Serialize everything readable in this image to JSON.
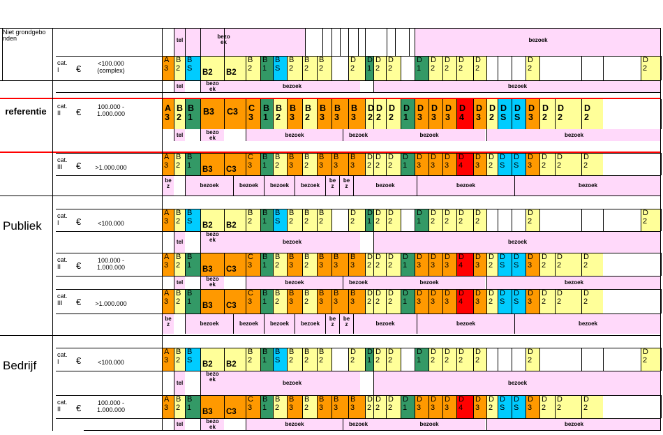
{
  "color_map": {
    "A": "#ff9900",
    "Bo": "#ff9900",
    "Bg": "#339966",
    "Bc": "#00ccff",
    "By": "#ffff99",
    "Dy": "#ffff99",
    "Dg": "#339966",
    "Dc": "#00ccff",
    "Do": "#ff9900",
    "R": "#ff0000",
    "Cy": "#ffff99",
    "Co": "#ff9900"
  },
  "sections": {
    "niet_grondgebonden": "Niet grondgebonden",
    "referentie": "referentie",
    "publiek": "Publiek",
    "bedrijf": "Bedrijf"
  },
  "rows": [
    {
      "id": "niet-cat1",
      "cat": "cat. I",
      "euro": "€",
      "range": [
        "<100.000",
        "(complex)"
      ],
      "type": 1
    },
    {
      "id": "ref-cat2",
      "cat": "cat. II",
      "euro": "€",
      "range": [
        "100.000 -",
        "1.000.000"
      ],
      "type": 2
    },
    {
      "id": "ref-cat3",
      "cat": "cat. III",
      "euro": "€",
      "range": [
        ">1.000.000"
      ],
      "type": 3
    },
    {
      "id": "pub-cat1",
      "cat": "cat. I",
      "euro": "€",
      "range": [
        "<100.000"
      ],
      "type": 1
    },
    {
      "id": "pub-cat2",
      "cat": "cat. II",
      "euro": "€",
      "range": [
        "100.000 -",
        "1.000.000"
      ],
      "type": 2
    },
    {
      "id": "pub-cat3",
      "cat": "cat. III",
      "euro": "€",
      "range": [
        ">1.000.000"
      ],
      "type": 3
    },
    {
      "id": "bed-cat1",
      "cat": "cat. I",
      "euro": "€",
      "range": [
        "<100.000"
      ],
      "type": 1
    },
    {
      "id": "bed-cat2",
      "cat": "cat. II",
      "euro": "€",
      "range": [
        "100.000 -",
        "1.000.000"
      ],
      "type": 2
    }
  ],
  "cell_types": {
    "1": [
      {
        "t": "A3",
        "c": "A"
      },
      {
        "t": "B2",
        "c": "By"
      },
      {
        "t": "BS",
        "c": "Bc"
      },
      {
        "t": "B2",
        "c": "By",
        "flat": true
      },
      {
        "t": "B2",
        "c": "By",
        "flat": true
      },
      {
        "t": "B2",
        "c": "By"
      },
      {
        "t": "B1",
        "c": "Bg"
      },
      {
        "t": "BS",
        "c": "Bc"
      },
      {
        "t": "B2",
        "c": "By"
      },
      {
        "t": "B2",
        "c": "By"
      },
      {
        "t": "B2",
        "c": "By"
      },
      {
        "t": "",
        "c": ""
      },
      {
        "t": "D2",
        "c": "Dy"
      },
      {
        "t": "D1",
        "c": "Dg"
      },
      {
        "t": "D2",
        "c": "Dy"
      },
      {
        "t": "D2",
        "c": "Dy"
      },
      {
        "t": "",
        "c": ""
      },
      {
        "t": "D1",
        "c": "Dg"
      },
      {
        "t": "D2",
        "c": "Dy"
      },
      {
        "t": "D2",
        "c": "Dy"
      },
      {
        "t": "D2",
        "c": "Dy"
      },
      {
        "t": "D2",
        "c": "Dy"
      },
      {
        "t": "",
        "c": ""
      },
      {
        "t": "",
        "c": ""
      },
      {
        "t": "",
        "c": ""
      },
      {
        "t": "D2",
        "c": "Dy"
      },
      {
        "t": "",
        "c": ""
      },
      {
        "t": "",
        "c": ""
      },
      {
        "t": "",
        "c": ""
      },
      {
        "t": "D2",
        "c": "Dy"
      }
    ],
    "2": [
      {
        "t": "A3",
        "c": "A"
      },
      {
        "t": "B2",
        "c": "By"
      },
      {
        "t": "B1",
        "c": "Bg"
      },
      {
        "t": "B3",
        "c": "Bo",
        "flat": true
      },
      {
        "t": "C3",
        "c": "Co",
        "flat": true
      },
      {
        "t": "C3",
        "c": "Co"
      },
      {
        "t": "B1",
        "c": "Bg"
      },
      {
        "t": "B2",
        "c": "By"
      },
      {
        "t": "B3",
        "c": "Bo"
      },
      {
        "t": "B2",
        "c": "By"
      },
      {
        "t": "B3",
        "c": "Bo"
      },
      {
        "t": "B3",
        "c": "Bo"
      },
      {
        "t": "B3",
        "c": "Bo"
      },
      {
        "t": "D2",
        "c": "Dy"
      },
      {
        "t": "D2",
        "c": "Dy"
      },
      {
        "t": "D2",
        "c": "Dy"
      },
      {
        "t": "D1",
        "c": "Dg"
      },
      {
        "t": "D3",
        "c": "Do"
      },
      {
        "t": "D3",
        "c": "Do"
      },
      {
        "t": "D3",
        "c": "Do"
      },
      {
        "t": "D4",
        "c": "R"
      },
      {
        "t": "D3",
        "c": "Do"
      },
      {
        "t": "D2",
        "c": "Dy"
      },
      {
        "t": "DS",
        "c": "Dc"
      },
      {
        "t": "DS",
        "c": "Dc"
      },
      {
        "t": "D3",
        "c": "Do"
      },
      {
        "t": "D2",
        "c": "Dy"
      },
      {
        "t": "D2",
        "c": "Dy"
      },
      {
        "t": "D2",
        "c": "Dy"
      }
    ]
  },
  "bands": {
    "tel": "tel",
    "bezoek": "bezoek",
    "bezo_ek": [
      "bezo",
      "ek"
    ],
    "be_z": [
      "be",
      "z"
    ]
  }
}
